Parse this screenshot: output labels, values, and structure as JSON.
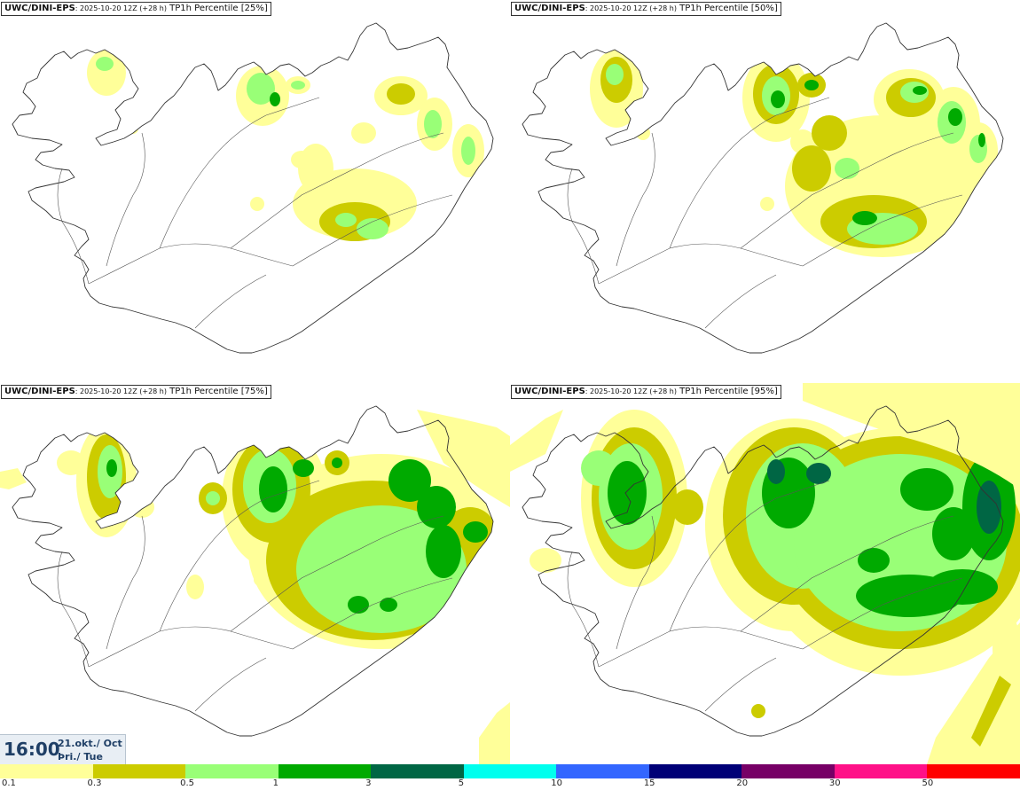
{
  "panels": [
    {
      "model": "UWC/DINI-EPS",
      "run": ": 2025-10-20 12Z (+28 h)",
      "field": " TP1h Percentile [25%]",
      "intensity": 0
    },
    {
      "model": "UWC/DINI-EPS",
      "run": ": 2025-10-20 12Z (+28 h)",
      "field": " TP1h Percentile [50%]",
      "intensity": 1
    },
    {
      "model": "UWC/DINI-EPS",
      "run": ": 2025-10-20 12Z (+28 h)",
      "field": " TP1h Percentile [75%]",
      "intensity": 2
    },
    {
      "model": "UWC/DINI-EPS",
      "run": ": 2025-10-20 12Z (+28 h)",
      "field": " TP1h Percentile [95%]",
      "intensity": 3
    }
  ],
  "time": {
    "clock": "16:00",
    "date_line1": "21.okt./ Oct",
    "date_line2": "Þri./ Tue"
  },
  "colorbar": {
    "colors": [
      "#ffff99",
      "#cccc00",
      "#99ff77",
      "#00aa00",
      "#006644",
      "#00ffee",
      "#3366ff",
      "#000077",
      "#770066",
      "#ff1188",
      "#ff0000"
    ],
    "labels": [
      "0.1",
      "0.3",
      "0.5",
      "1",
      "3",
      "5",
      "10",
      "15",
      "20",
      "30",
      "50"
    ]
  },
  "colors": {
    "coast": "#333333",
    "roads": "#555555",
    "lt0_1": "#ffff99",
    "lt0_3": "#cccc00",
    "lt0_5": "#99ff77",
    "lt1": "#00aa00",
    "lt3": "#006644"
  }
}
